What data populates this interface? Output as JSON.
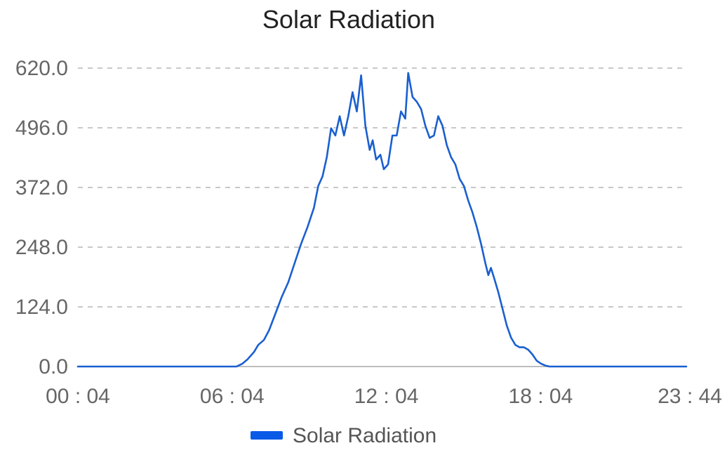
{
  "colors": {
    "series": "#1a5fd0",
    "legend_swatch": "#0a5ae8",
    "grid": "#c8c8c8",
    "axis": "#bdbdbd",
    "title": "#222222",
    "tick_text": "#666666"
  },
  "chart_data": {
    "type": "line",
    "title": "Solar Radiation",
    "xlabel": "",
    "ylabel": "",
    "x_ticks": [
      "00 : 04",
      "06 : 04",
      "12 : 04",
      "18 : 04",
      "23 : 44"
    ],
    "y_ticks": [
      "0.0",
      "124.0",
      "248.0",
      "372.0",
      "496.0",
      "620.0"
    ],
    "xlim": [
      "00:04",
      "23:44"
    ],
    "ylim": [
      0,
      620
    ],
    "grid": true,
    "legend": {
      "placement": "bottom-center",
      "entries": [
        "Solar Radiation"
      ]
    },
    "series": [
      {
        "name": "Solar Radiation",
        "points": [
          [
            "00:04",
            0
          ],
          [
            "06:14",
            0
          ],
          [
            "06:28",
            6
          ],
          [
            "06:40",
            15
          ],
          [
            "06:55",
            30
          ],
          [
            "07:05",
            45
          ],
          [
            "07:18",
            55
          ],
          [
            "07:30",
            75
          ],
          [
            "07:45",
            110
          ],
          [
            "08:00",
            145
          ],
          [
            "08:15",
            175
          ],
          [
            "08:30",
            215
          ],
          [
            "08:45",
            255
          ],
          [
            "09:00",
            290
          ],
          [
            "09:15",
            330
          ],
          [
            "09:25",
            375
          ],
          [
            "09:35",
            395
          ],
          [
            "09:45",
            435
          ],
          [
            "09:55",
            495
          ],
          [
            "10:05",
            480
          ],
          [
            "10:15",
            520
          ],
          [
            "10:25",
            480
          ],
          [
            "10:35",
            520
          ],
          [
            "10:45",
            570
          ],
          [
            "10:55",
            530
          ],
          [
            "11:05",
            605
          ],
          [
            "11:15",
            500
          ],
          [
            "11:25",
            450
          ],
          [
            "11:32",
            470
          ],
          [
            "11:40",
            430
          ],
          [
            "11:50",
            440
          ],
          [
            "11:58",
            410
          ],
          [
            "12:08",
            420
          ],
          [
            "12:18",
            480
          ],
          [
            "12:28",
            480
          ],
          [
            "12:38",
            530
          ],
          [
            "12:48",
            515
          ],
          [
            "12:55",
            610
          ],
          [
            "13:05",
            560
          ],
          [
            "13:15",
            550
          ],
          [
            "13:25",
            535
          ],
          [
            "13:35",
            500
          ],
          [
            "13:45",
            475
          ],
          [
            "13:55",
            480
          ],
          [
            "14:05",
            520
          ],
          [
            "14:15",
            500
          ],
          [
            "14:25",
            460
          ],
          [
            "14:35",
            435
          ],
          [
            "14:45",
            420
          ],
          [
            "14:55",
            390
          ],
          [
            "15:05",
            375
          ],
          [
            "15:15",
            345
          ],
          [
            "15:25",
            320
          ],
          [
            "15:35",
            290
          ],
          [
            "15:45",
            255
          ],
          [
            "15:55",
            215
          ],
          [
            "16:02",
            190
          ],
          [
            "16:08",
            205
          ],
          [
            "16:15",
            185
          ],
          [
            "16:25",
            155
          ],
          [
            "16:35",
            120
          ],
          [
            "16:45",
            85
          ],
          [
            "16:55",
            60
          ],
          [
            "17:05",
            45
          ],
          [
            "17:15",
            40
          ],
          [
            "17:25",
            40
          ],
          [
            "17:35",
            35
          ],
          [
            "17:45",
            25
          ],
          [
            "17:55",
            12
          ],
          [
            "18:05",
            6
          ],
          [
            "18:15",
            2
          ],
          [
            "18:25",
            0
          ],
          [
            "23:44",
            0
          ]
        ]
      }
    ]
  }
}
